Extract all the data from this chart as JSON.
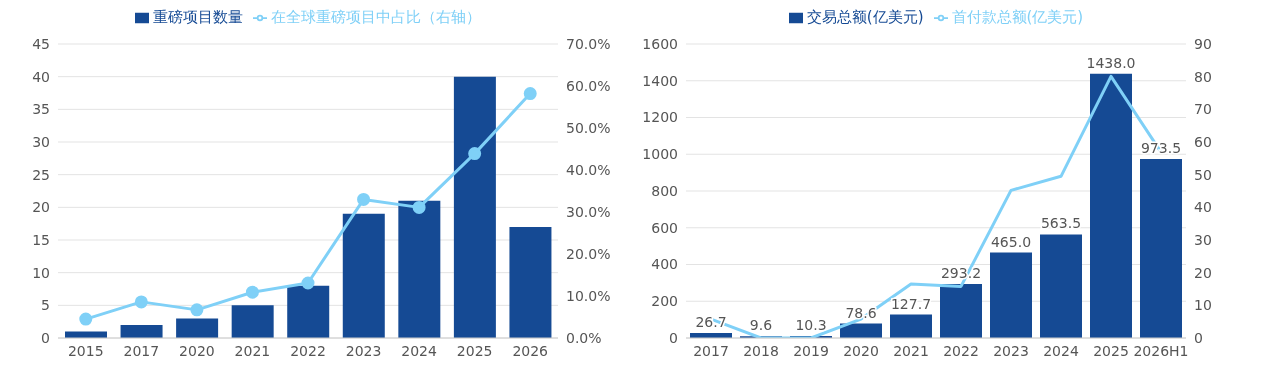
{
  "chart_data": [
    {
      "type": "bar",
      "categories": [
        "2015",
        "2017",
        "2020",
        "2021",
        "2022",
        "2023",
        "2024",
        "2025",
        "2026"
      ],
      "series": [
        {
          "name": "重磅项目数量",
          "color": "#154a94",
          "values": [
            1,
            2,
            3,
            5,
            8,
            19,
            21,
            40,
            17
          ]
        },
        {
          "name": "在全球重磅项目中占比（右轴）",
          "type": "line",
          "axis": "y2",
          "marker": "circle",
          "color": "#7fd0f7",
          "values": [
            4.5,
            8.6,
            6.7,
            10.9,
            13.1,
            33.0,
            31.1,
            43.9,
            58.2
          ]
        }
      ],
      "ylim": [
        0,
        45
      ],
      "yticks": [
        0,
        5,
        10,
        15,
        20,
        25,
        30,
        35,
        40,
        45
      ],
      "y2lim": [
        0,
        70
      ],
      "y2ticks": [
        {
          "value": 0,
          "label": "0.0%"
        },
        {
          "value": 10,
          "label": "10.0%"
        },
        {
          "value": 20,
          "label": "20.0%"
        },
        {
          "value": 30,
          "label": "30.0%"
        },
        {
          "value": 40,
          "label": "40.0%"
        },
        {
          "value": 50,
          "label": "50.0%"
        },
        {
          "value": 60,
          "label": "60.0%"
        },
        {
          "value": 70,
          "label": "70.0%"
        }
      ],
      "grid": "y",
      "legend": "top"
    },
    {
      "type": "bar",
      "categories": [
        "2017",
        "2018",
        "2019",
        "2020",
        "2021",
        "2022",
        "2023",
        "2024",
        "2025",
        "2026H1"
      ],
      "series": [
        {
          "name": "交易总额(亿美元)",
          "color": "#154a94",
          "values": [
            26.7,
            9.6,
            10.3,
            78.6,
            127.7,
            293.2,
            465.0,
            563.5,
            1438.0,
            973.5
          ],
          "value_labels": [
            "26.7",
            "9.6",
            "10.3",
            "78.6",
            "127.7",
            "293.2",
            "465.0",
            "563.5",
            "1438.0",
            "973.5"
          ]
        },
        {
          "name": "首付款总额(亿美元)",
          "type": "line",
          "axis": "y2",
          "marker": "none",
          "color": "#7fd0f7",
          "values": [
            5.8,
            0,
            0,
            5.8,
            16.5,
            15.8,
            45.2,
            49.5,
            80.1,
            56.9
          ]
        }
      ],
      "ylim": [
        0,
        1600
      ],
      "yticks": [
        0,
        200,
        400,
        600,
        800,
        1000,
        1200,
        1400,
        1600
      ],
      "y2lim": [
        0,
        90
      ],
      "y2ticks": [
        0,
        10,
        20,
        30,
        40,
        50,
        60,
        70,
        80,
        90
      ],
      "grid": "y",
      "legend": "top"
    }
  ]
}
